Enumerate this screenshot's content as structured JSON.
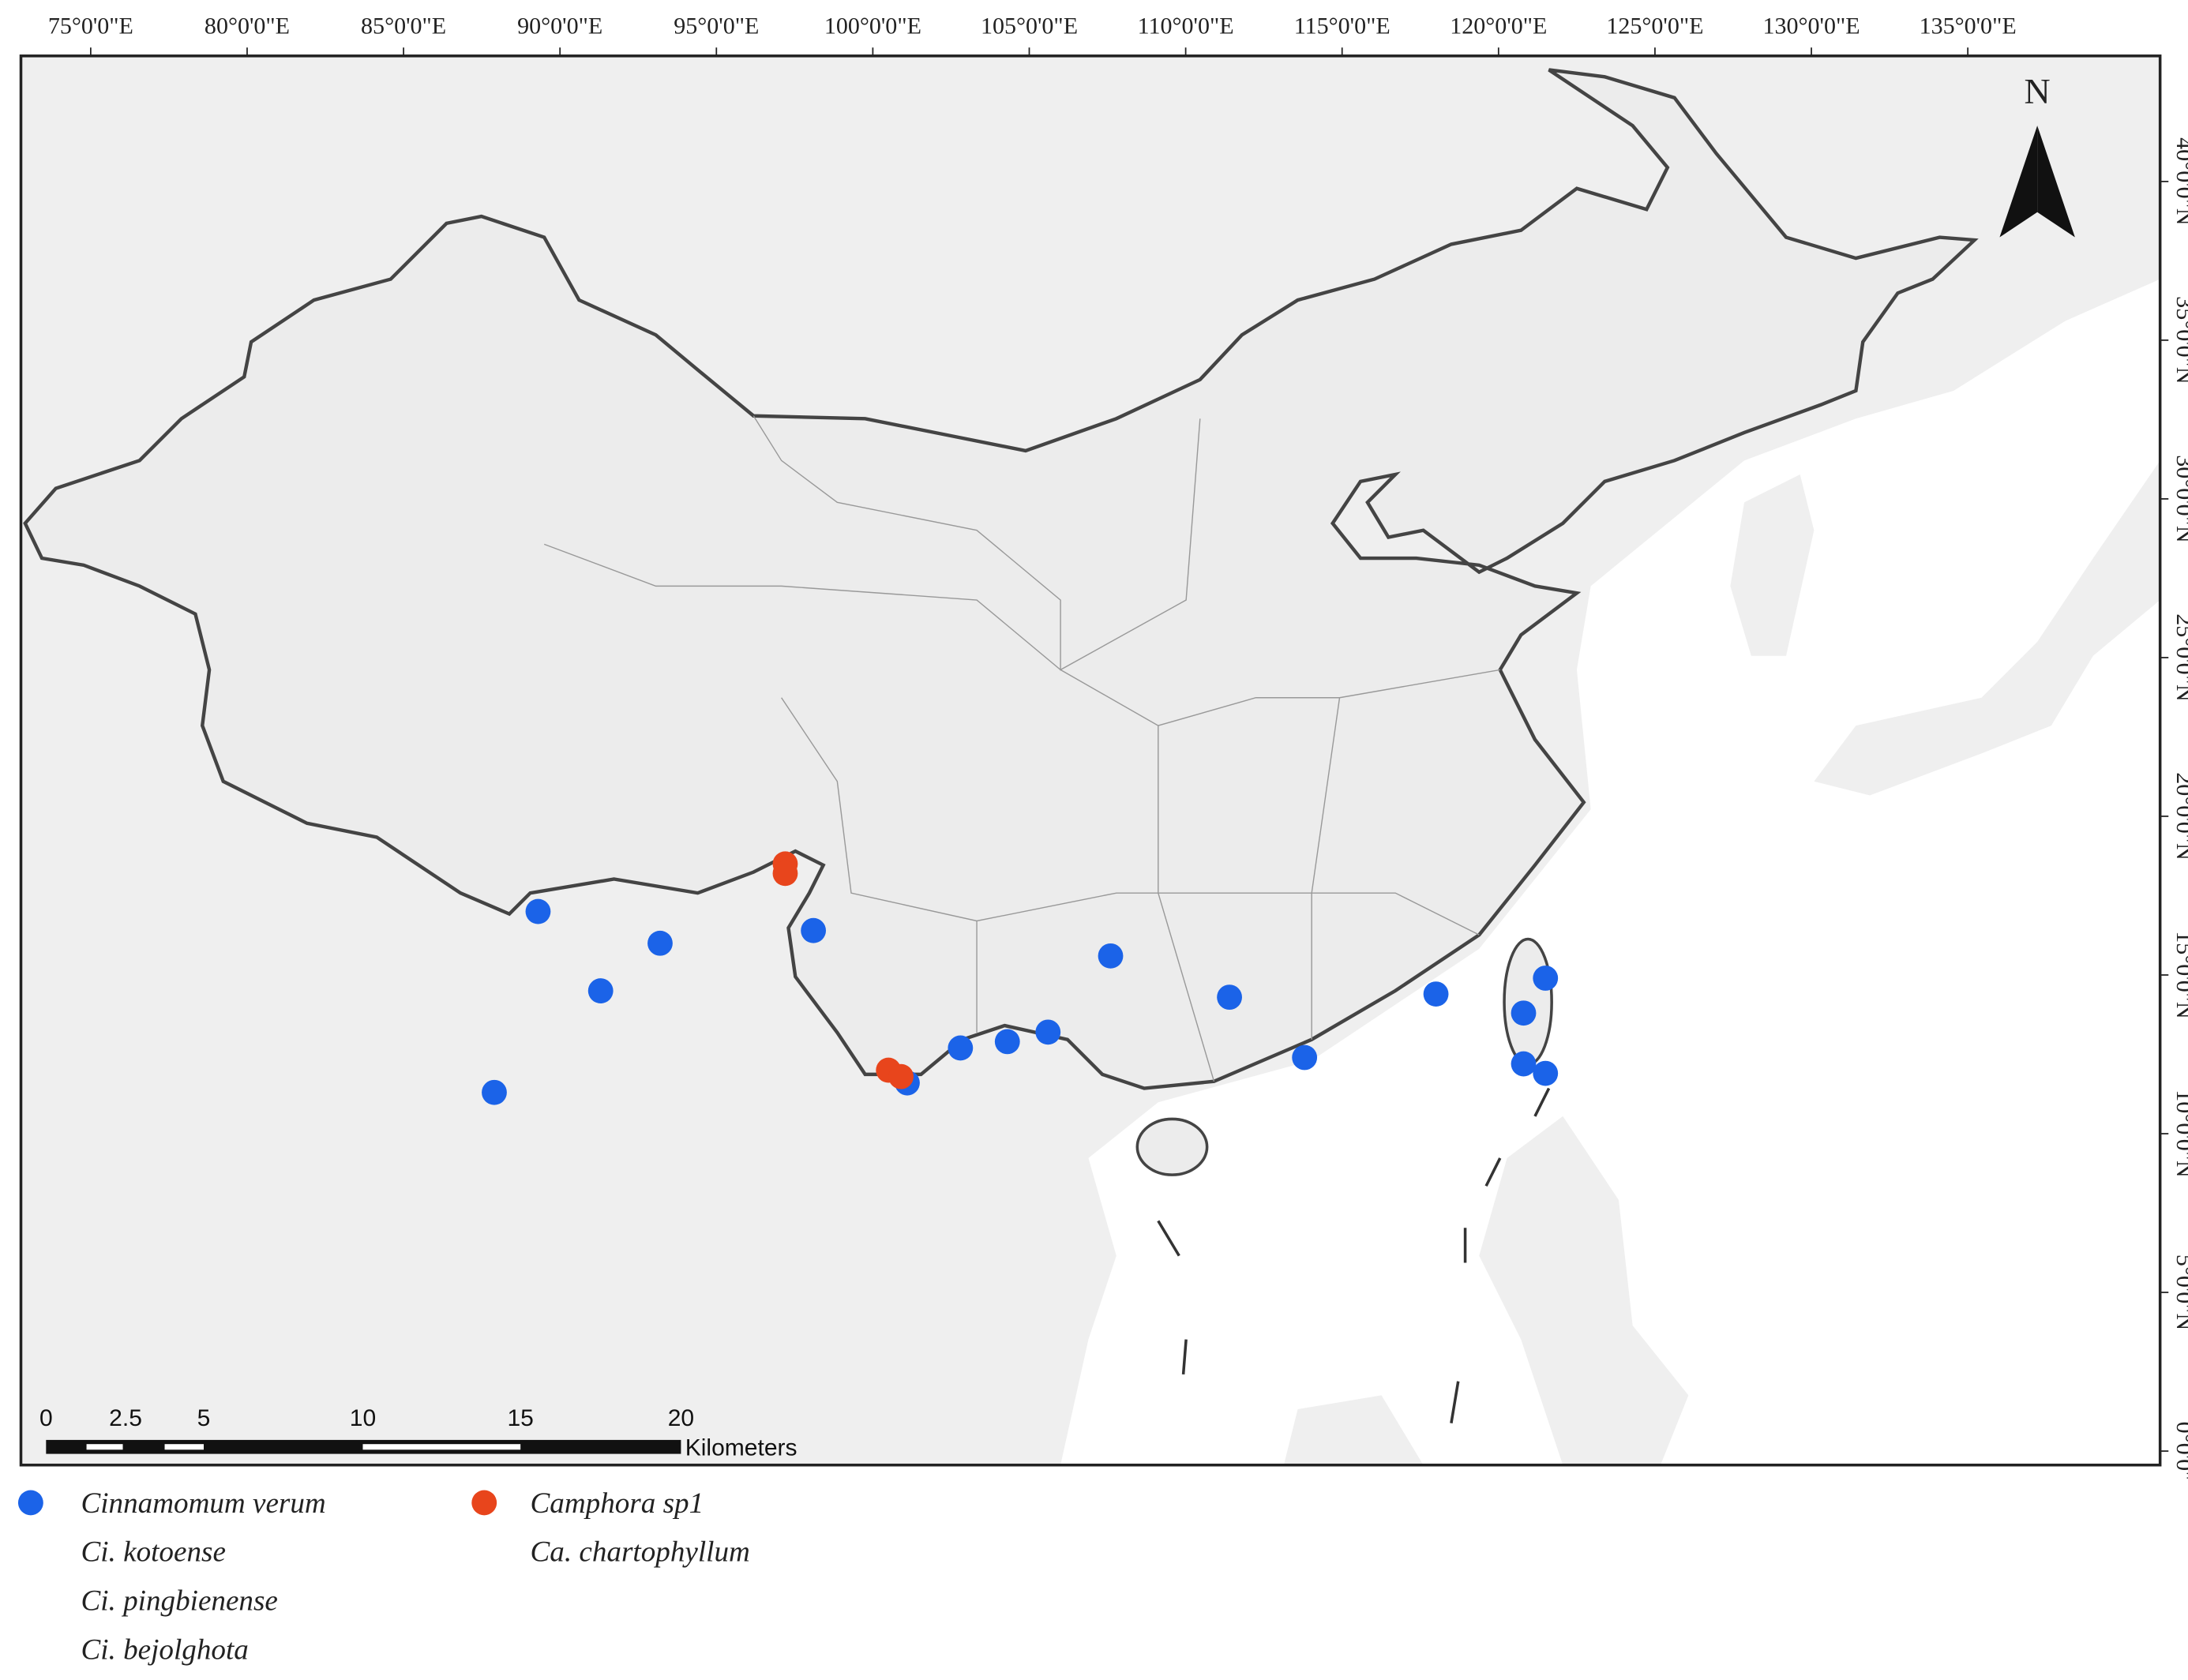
{
  "map": {
    "lon_labels": [
      "75°0'0\"E",
      "80°0'0\"E",
      "85°0'0\"E",
      "90°0'0\"E",
      "95°0'0\"E",
      "100°0'0\"E",
      "105°0'0\"E",
      "110°0'0\"E",
      "115°0'0\"E",
      "120°0'0\"E",
      "125°0'0\"E",
      "130°0'0\"E",
      "135°0'0\"E"
    ],
    "lat_labels": [
      "40°0'0\"N",
      "35°0'0\"N",
      "30°0'0\"N",
      "25°0'0\"N",
      "20°0'0\"N",
      "15°0'0\"N",
      "10°0'0\"N",
      "5°0'0\"N",
      "0°0'0\""
    ],
    "north": "N",
    "scale_bar": {
      "labels": [
        "0",
        "2.5",
        "5",
        "10",
        "15",
        "20"
      ],
      "unit": "Kilometers"
    },
    "groups": [
      {
        "color": "#1b63e8",
        "names": [
          "Cinnamomum verum",
          "Ci. kotoense",
          "Ci. pingbienense",
          "Ci. bejolghota"
        ],
        "points": {
          "lon": [
            89.3,
            91.3,
            93.2,
            87.9,
            98.1,
            101.1,
            102.8,
            104.3,
            105.6,
            107.6,
            111.4,
            113.8,
            118.0,
            120.8,
            121.5,
            120.8,
            121.5
          ],
          "lat": [
            17.0,
            14.5,
            16.0,
            11.3,
            16.4,
            11.6,
            12.7,
            12.9,
            13.2,
            15.6,
            14.3,
            12.4,
            14.4,
            13.8,
            14.9,
            12.2,
            11.9
          ]
        }
      },
      {
        "color": "#e8451c",
        "names": [
          "Camphora sp1",
          "Ca. chartophyllum"
        ],
        "points": {
          "lon": [
            97.2,
            97.2,
            100.5,
            100.9
          ],
          "lat": [
            18.5,
            18.2,
            12.0,
            11.8
          ]
        }
      }
    ]
  }
}
